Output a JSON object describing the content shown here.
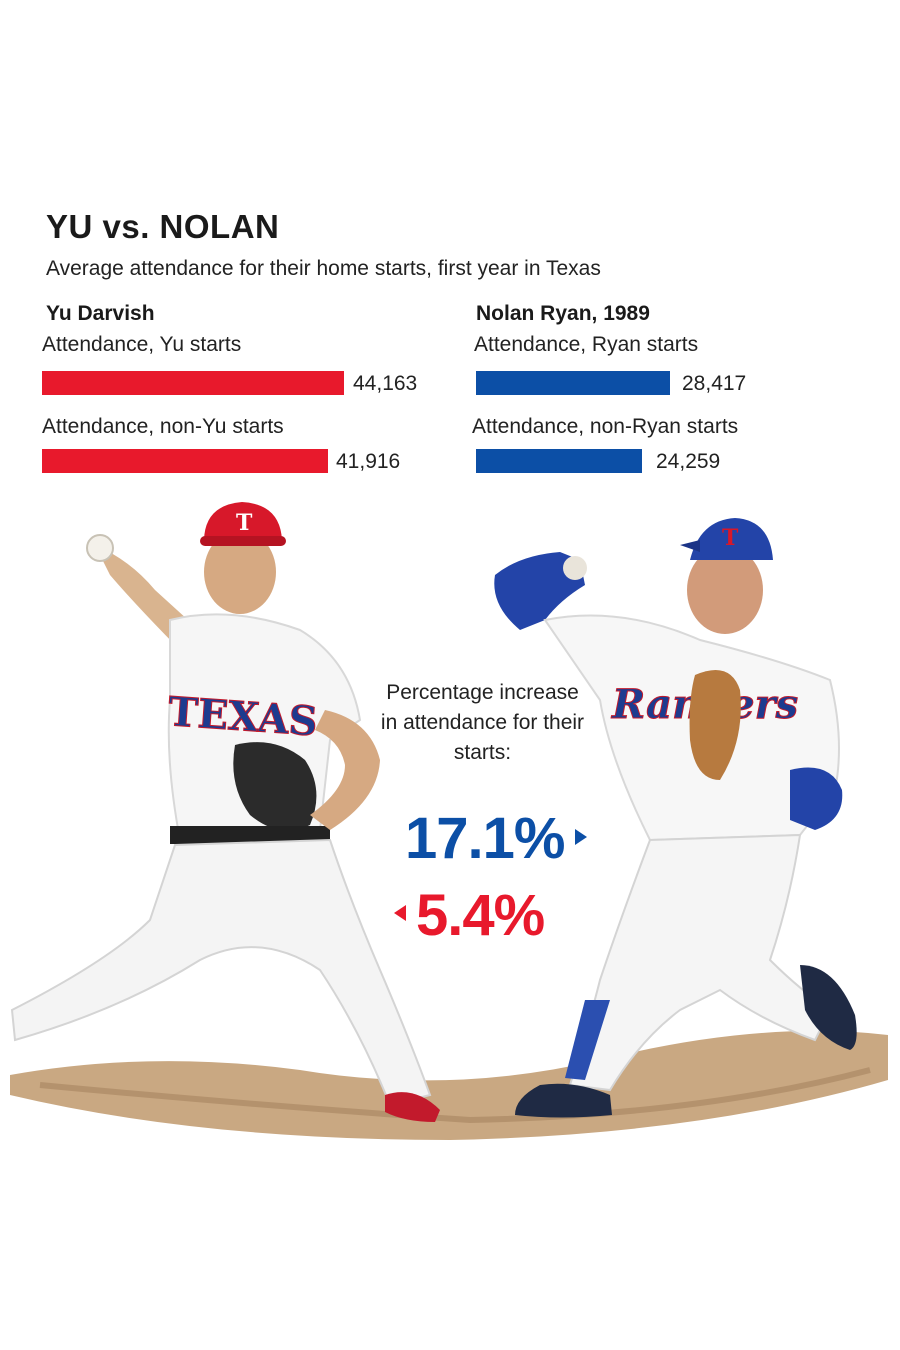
{
  "title": "YU vs. NOLAN",
  "subtitle": "Average attendance for their home starts, first year in Texas",
  "yu": {
    "heading": "Yu Darvish",
    "rows": [
      {
        "label": "Attendance, Yu starts",
        "value_text": "44,163"
      },
      {
        "label": "Attendance, non-Yu starts",
        "value_text": "41,916"
      }
    ]
  },
  "nolan": {
    "heading": "Nolan Ryan, 1989",
    "rows": [
      {
        "label": "Attendance, Ryan starts",
        "value_text": "28,417"
      },
      {
        "label": "Attendance, non-Ryan starts",
        "value_text": "24,259"
      }
    ]
  },
  "note": "Percentage increase in attendance for their starts:",
  "nolan_increase": "17.1%",
  "yu_increase": "5.4%",
  "photo_left": {
    "cap_letter": "T",
    "jersey_text": "TEXAS"
  },
  "photo_right": {
    "cap_letter": "T",
    "jersey_text": "Rangers"
  },
  "colors": {
    "yu": "#e8192c",
    "nolan": "#0c4fa6"
  },
  "chart_data": {
    "type": "bar",
    "title": "YU vs. NOLAN",
    "subtitle": "Average attendance for their home starts, first year in Texas",
    "series": [
      {
        "name": "Yu Darvish",
        "categories": [
          "Attendance, Yu starts",
          "Attendance, non-Yu starts"
        ],
        "values": [
          44163,
          41916
        ]
      },
      {
        "name": "Nolan Ryan, 1989",
        "categories": [
          "Attendance, Ryan starts",
          "Attendance, non-Ryan starts"
        ],
        "values": [
          28417,
          24259
        ]
      }
    ],
    "percentage_increase": {
      "Nolan Ryan, 1989": 17.1,
      "Yu Darvish": 5.4
    }
  }
}
